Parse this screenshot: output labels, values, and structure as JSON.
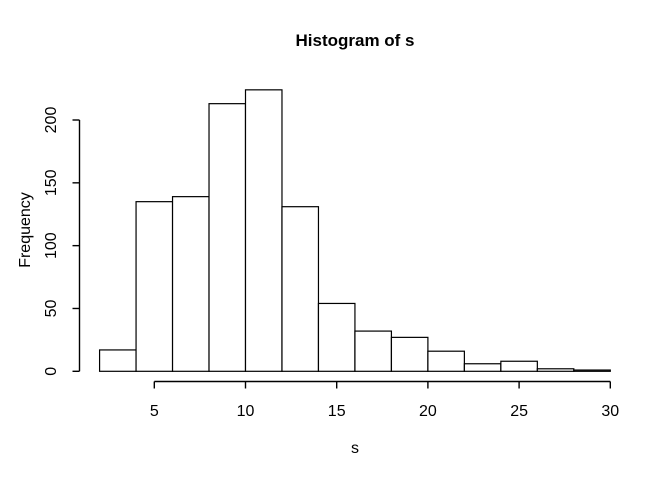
{
  "chart_data": {
    "type": "bar",
    "variant": "histogram",
    "title": "Histogram of s",
    "xlabel": "s",
    "ylabel": "Frequency",
    "bins": {
      "start": 2,
      "width": 2
    },
    "bin_edges": [
      2,
      4,
      6,
      8,
      10,
      12,
      14,
      16,
      18,
      20,
      22,
      24,
      26,
      28,
      30
    ],
    "frequencies": [
      17,
      135,
      139,
      213,
      224,
      131,
      54,
      32,
      27,
      16,
      6,
      8,
      2,
      1
    ],
    "x_ticks": [
      5,
      10,
      15,
      20,
      25,
      30
    ],
    "y_ticks": [
      0,
      50,
      100,
      150,
      200
    ],
    "xlim": [
      2,
      30
    ],
    "ylim": [
      0,
      224
    ],
    "grid": "off",
    "legend": "none",
    "bar_fill": "#ffffff",
    "bar_stroke": "#000000",
    "text_color": "#000000",
    "background": "#ffffff"
  }
}
